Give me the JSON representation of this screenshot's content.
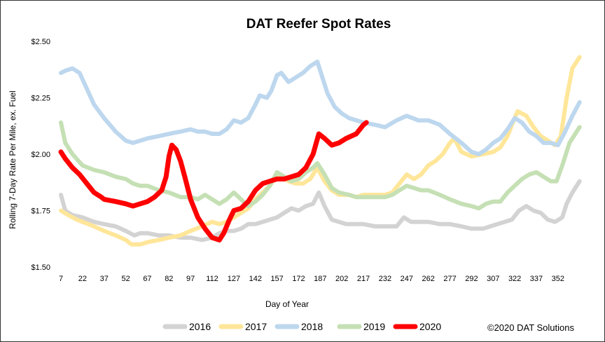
{
  "chart_data": {
    "type": "line",
    "title": "DAT Reefer Spot Rates",
    "xlabel": "Day of Year",
    "ylabel": "Rolling 7-Day Rate Per Mile, ex. Fuel",
    "xlim": [
      7,
      372
    ],
    "ylim": [
      1.5,
      2.5
    ],
    "x_ticks": [
      7,
      22,
      37,
      52,
      67,
      82,
      97,
      112,
      127,
      142,
      157,
      172,
      187,
      202,
      217,
      232,
      247,
      262,
      277,
      292,
      307,
      322,
      337,
      352
    ],
    "y_ticks": [
      1.5,
      1.75,
      2.0,
      2.25,
      2.5
    ],
    "y_tick_labels": [
      "$1.50",
      "$1.75",
      "$2.00",
      "$2.25",
      "$2.50"
    ],
    "grid": false,
    "legend_position": "bottom",
    "series": [
      {
        "name": "2016",
        "color": "#d3d3d3",
        "points": [
          [
            7,
            1.82
          ],
          [
            10,
            1.75
          ],
          [
            15,
            1.73
          ],
          [
            22,
            1.72
          ],
          [
            30,
            1.7
          ],
          [
            37,
            1.69
          ],
          [
            45,
            1.68
          ],
          [
            52,
            1.66
          ],
          [
            58,
            1.64
          ],
          [
            62,
            1.65
          ],
          [
            67,
            1.65
          ],
          [
            75,
            1.64
          ],
          [
            82,
            1.64
          ],
          [
            90,
            1.63
          ],
          [
            97,
            1.63
          ],
          [
            105,
            1.62
          ],
          [
            112,
            1.63
          ],
          [
            117,
            1.65
          ],
          [
            122,
            1.66
          ],
          [
            127,
            1.66
          ],
          [
            132,
            1.67
          ],
          [
            137,
            1.69
          ],
          [
            142,
            1.69
          ],
          [
            147,
            1.7
          ],
          [
            152,
            1.71
          ],
          [
            157,
            1.72
          ],
          [
            162,
            1.74
          ],
          [
            167,
            1.76
          ],
          [
            172,
            1.75
          ],
          [
            177,
            1.77
          ],
          [
            182,
            1.78
          ],
          [
            186,
            1.83
          ],
          [
            190,
            1.77
          ],
          [
            195,
            1.71
          ],
          [
            200,
            1.7
          ],
          [
            205,
            1.69
          ],
          [
            212,
            1.69
          ],
          [
            217,
            1.69
          ],
          [
            225,
            1.68
          ],
          [
            232,
            1.68
          ],
          [
            240,
            1.68
          ],
          [
            245,
            1.72
          ],
          [
            250,
            1.7
          ],
          [
            255,
            1.7
          ],
          [
            262,
            1.7
          ],
          [
            270,
            1.69
          ],
          [
            277,
            1.69
          ],
          [
            285,
            1.68
          ],
          [
            292,
            1.67
          ],
          [
            300,
            1.67
          ],
          [
            305,
            1.68
          ],
          [
            310,
            1.69
          ],
          [
            315,
            1.7
          ],
          [
            320,
            1.71
          ],
          [
            325,
            1.75
          ],
          [
            330,
            1.77
          ],
          [
            335,
            1.75
          ],
          [
            340,
            1.74
          ],
          [
            345,
            1.71
          ],
          [
            350,
            1.7
          ],
          [
            355,
            1.72
          ],
          [
            358,
            1.78
          ],
          [
            362,
            1.83
          ],
          [
            367,
            1.88
          ]
        ]
      },
      {
        "name": "2017",
        "color": "#ffe699",
        "points": [
          [
            7,
            1.75
          ],
          [
            12,
            1.73
          ],
          [
            18,
            1.71
          ],
          [
            22,
            1.7
          ],
          [
            30,
            1.68
          ],
          [
            37,
            1.66
          ],
          [
            45,
            1.64
          ],
          [
            52,
            1.62
          ],
          [
            56,
            1.6
          ],
          [
            62,
            1.6
          ],
          [
            67,
            1.61
          ],
          [
            75,
            1.62
          ],
          [
            82,
            1.63
          ],
          [
            90,
            1.64
          ],
          [
            97,
            1.66
          ],
          [
            105,
            1.68
          ],
          [
            112,
            1.7
          ],
          [
            117,
            1.69
          ],
          [
            122,
            1.7
          ],
          [
            127,
            1.72
          ],
          [
            132,
            1.74
          ],
          [
            137,
            1.76
          ],
          [
            142,
            1.8
          ],
          [
            147,
            1.83
          ],
          [
            152,
            1.86
          ],
          [
            157,
            1.91
          ],
          [
            160,
            1.9
          ],
          [
            165,
            1.88
          ],
          [
            170,
            1.87
          ],
          [
            175,
            1.87
          ],
          [
            180,
            1.89
          ],
          [
            185,
            1.94
          ],
          [
            190,
            1.88
          ],
          [
            195,
            1.84
          ],
          [
            200,
            1.82
          ],
          [
            207,
            1.82
          ],
          [
            212,
            1.81
          ],
          [
            217,
            1.82
          ],
          [
            225,
            1.82
          ],
          [
            232,
            1.82
          ],
          [
            237,
            1.83
          ],
          [
            242,
            1.87
          ],
          [
            247,
            1.91
          ],
          [
            252,
            1.89
          ],
          [
            257,
            1.91
          ],
          [
            262,
            1.95
          ],
          [
            267,
            1.97
          ],
          [
            272,
            2.0
          ],
          [
            277,
            2.05
          ],
          [
            280,
            2.07
          ],
          [
            285,
            2.01
          ],
          [
            292,
            1.99
          ],
          [
            300,
            2.0
          ],
          [
            307,
            2.01
          ],
          [
            312,
            2.03
          ],
          [
            317,
            2.08
          ],
          [
            320,
            2.13
          ],
          [
            324,
            2.19
          ],
          [
            330,
            2.17
          ],
          [
            335,
            2.12
          ],
          [
            340,
            2.08
          ],
          [
            345,
            2.06
          ],
          [
            350,
            2.04
          ],
          [
            354,
            2.08
          ],
          [
            358,
            2.25
          ],
          [
            362,
            2.38
          ],
          [
            367,
            2.43
          ]
        ]
      },
      {
        "name": "2018",
        "color": "#bdd7ee",
        "points": [
          [
            7,
            2.36
          ],
          [
            10,
            2.37
          ],
          [
            15,
            2.38
          ],
          [
            20,
            2.36
          ],
          [
            25,
            2.29
          ],
          [
            30,
            2.22
          ],
          [
            37,
            2.16
          ],
          [
            45,
            2.1
          ],
          [
            52,
            2.06
          ],
          [
            57,
            2.05
          ],
          [
            62,
            2.06
          ],
          [
            67,
            2.07
          ],
          [
            75,
            2.08
          ],
          [
            82,
            2.09
          ],
          [
            90,
            2.1
          ],
          [
            97,
            2.11
          ],
          [
            102,
            2.1
          ],
          [
            107,
            2.1
          ],
          [
            112,
            2.09
          ],
          [
            117,
            2.09
          ],
          [
            122,
            2.11
          ],
          [
            127,
            2.15
          ],
          [
            132,
            2.14
          ],
          [
            137,
            2.16
          ],
          [
            142,
            2.22
          ],
          [
            145,
            2.26
          ],
          [
            150,
            2.25
          ],
          [
            153,
            2.28
          ],
          [
            157,
            2.35
          ],
          [
            160,
            2.36
          ],
          [
            165,
            2.32
          ],
          [
            170,
            2.34
          ],
          [
            175,
            2.36
          ],
          [
            180,
            2.39
          ],
          [
            185,
            2.41
          ],
          [
            188,
            2.35
          ],
          [
            192,
            2.27
          ],
          [
            197,
            2.21
          ],
          [
            202,
            2.18
          ],
          [
            207,
            2.16
          ],
          [
            212,
            2.15
          ],
          [
            217,
            2.14
          ],
          [
            225,
            2.13
          ],
          [
            232,
            2.12
          ],
          [
            240,
            2.15
          ],
          [
            247,
            2.17
          ],
          [
            255,
            2.15
          ],
          [
            262,
            2.15
          ],
          [
            270,
            2.13
          ],
          [
            277,
            2.09
          ],
          [
            285,
            2.05
          ],
          [
            292,
            2.01
          ],
          [
            297,
            2.0
          ],
          [
            302,
            2.02
          ],
          [
            307,
            2.05
          ],
          [
            312,
            2.07
          ],
          [
            317,
            2.11
          ],
          [
            322,
            2.16
          ],
          [
            327,
            2.14
          ],
          [
            332,
            2.1
          ],
          [
            337,
            2.08
          ],
          [
            342,
            2.05
          ],
          [
            347,
            2.05
          ],
          [
            352,
            2.04
          ],
          [
            357,
            2.1
          ],
          [
            362,
            2.17
          ],
          [
            367,
            2.23
          ]
        ]
      },
      {
        "name": "2019",
        "color": "#c5e0b4",
        "points": [
          [
            7,
            2.14
          ],
          [
            10,
            2.05
          ],
          [
            15,
            2.0
          ],
          [
            22,
            1.95
          ],
          [
            30,
            1.93
          ],
          [
            37,
            1.92
          ],
          [
            45,
            1.9
          ],
          [
            52,
            1.89
          ],
          [
            57,
            1.87
          ],
          [
            62,
            1.86
          ],
          [
            67,
            1.86
          ],
          [
            75,
            1.84
          ],
          [
            82,
            1.83
          ],
          [
            90,
            1.81
          ],
          [
            97,
            1.81
          ],
          [
            102,
            1.8
          ],
          [
            107,
            1.82
          ],
          [
            112,
            1.8
          ],
          [
            117,
            1.78
          ],
          [
            122,
            1.8
          ],
          [
            127,
            1.83
          ],
          [
            132,
            1.8
          ],
          [
            137,
            1.77
          ],
          [
            142,
            1.79
          ],
          [
            147,
            1.82
          ],
          [
            152,
            1.86
          ],
          [
            157,
            1.92
          ],
          [
            162,
            1.9
          ],
          [
            167,
            1.88
          ],
          [
            172,
            1.89
          ],
          [
            177,
            1.92
          ],
          [
            182,
            1.94
          ],
          [
            185,
            1.96
          ],
          [
            190,
            1.91
          ],
          [
            195,
            1.85
          ],
          [
            200,
            1.83
          ],
          [
            207,
            1.82
          ],
          [
            212,
            1.81
          ],
          [
            217,
            1.81
          ],
          [
            225,
            1.81
          ],
          [
            232,
            1.81
          ],
          [
            237,
            1.82
          ],
          [
            242,
            1.84
          ],
          [
            247,
            1.86
          ],
          [
            252,
            1.85
          ],
          [
            257,
            1.84
          ],
          [
            262,
            1.84
          ],
          [
            270,
            1.82
          ],
          [
            277,
            1.8
          ],
          [
            285,
            1.78
          ],
          [
            292,
            1.77
          ],
          [
            297,
            1.76
          ],
          [
            302,
            1.78
          ],
          [
            307,
            1.79
          ],
          [
            312,
            1.79
          ],
          [
            317,
            1.83
          ],
          [
            322,
            1.86
          ],
          [
            327,
            1.89
          ],
          [
            332,
            1.91
          ],
          [
            337,
            1.92
          ],
          [
            342,
            1.9
          ],
          [
            347,
            1.88
          ],
          [
            351,
            1.88
          ],
          [
            355,
            1.95
          ],
          [
            360,
            2.05
          ],
          [
            367,
            2.12
          ]
        ]
      },
      {
        "name": "2020",
        "color": "#ff0000",
        "points": [
          [
            7,
            2.01
          ],
          [
            10,
            1.98
          ],
          [
            15,
            1.94
          ],
          [
            20,
            1.91
          ],
          [
            25,
            1.87
          ],
          [
            30,
            1.83
          ],
          [
            35,
            1.81
          ],
          [
            37,
            1.8
          ],
          [
            45,
            1.79
          ],
          [
            52,
            1.78
          ],
          [
            57,
            1.77
          ],
          [
            62,
            1.78
          ],
          [
            67,
            1.79
          ],
          [
            72,
            1.81
          ],
          [
            77,
            1.84
          ],
          [
            80,
            1.9
          ],
          [
            82,
            1.99
          ],
          [
            84,
            2.04
          ],
          [
            87,
            2.02
          ],
          [
            90,
            1.97
          ],
          [
            93,
            1.9
          ],
          [
            97,
            1.8
          ],
          [
            102,
            1.72
          ],
          [
            107,
            1.67
          ],
          [
            112,
            1.63
          ],
          [
            117,
            1.62
          ],
          [
            120,
            1.65
          ],
          [
            124,
            1.71
          ],
          [
            127,
            1.75
          ],
          [
            132,
            1.76
          ],
          [
            137,
            1.79
          ],
          [
            142,
            1.84
          ],
          [
            147,
            1.87
          ],
          [
            152,
            1.88
          ],
          [
            157,
            1.89
          ],
          [
            162,
            1.89
          ],
          [
            167,
            1.9
          ],
          [
            172,
            1.91
          ],
          [
            177,
            1.94
          ],
          [
            182,
            2.0
          ],
          [
            186,
            2.09
          ],
          [
            190,
            2.07
          ],
          [
            195,
            2.04
          ],
          [
            200,
            2.05
          ],
          [
            205,
            2.07
          ],
          [
            212,
            2.09
          ],
          [
            217,
            2.13
          ],
          [
            219,
            2.14
          ]
        ]
      }
    ],
    "annotation": "©2020 DAT Solutions"
  }
}
